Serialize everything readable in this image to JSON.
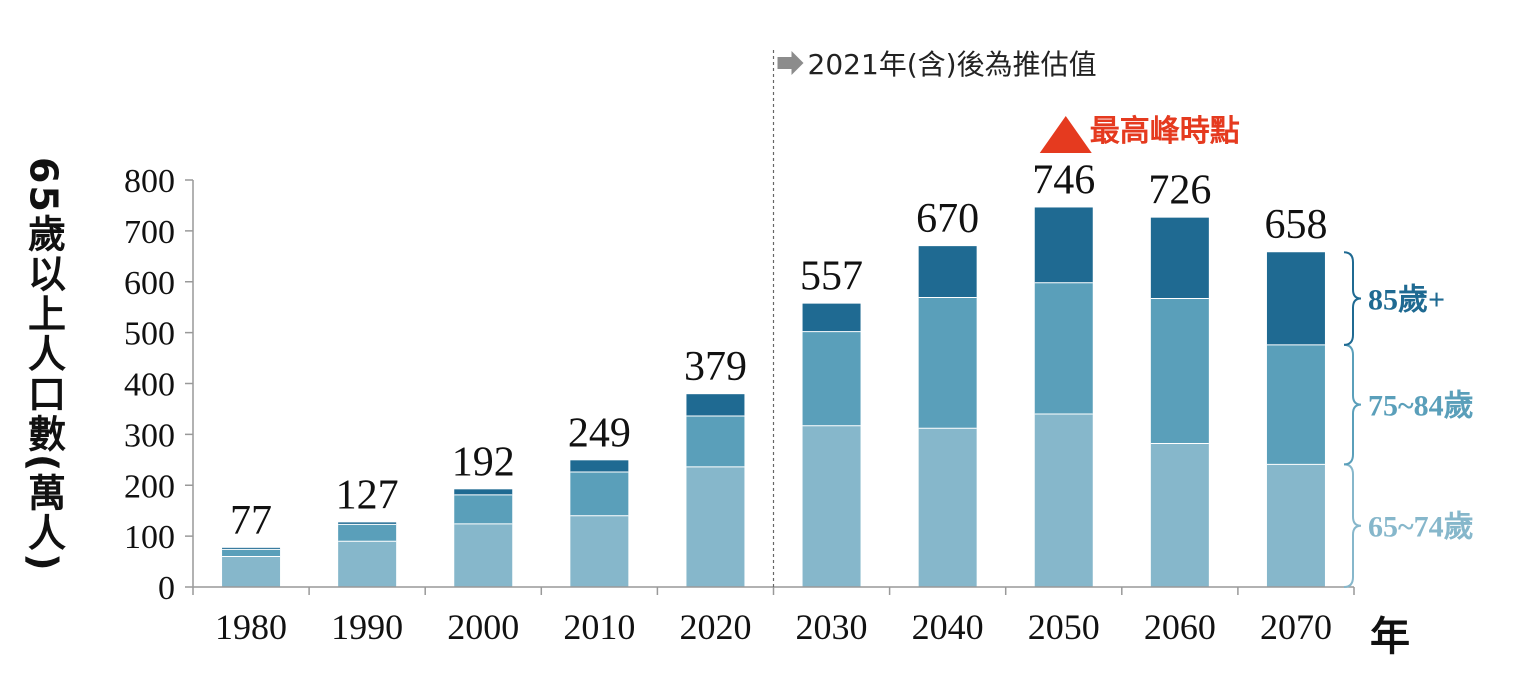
{
  "chart_data": {
    "type": "bar",
    "stacked": true,
    "title": "",
    "ylabel": "65歲以上人口數(萬人)",
    "xlabel": "年",
    "ylim": [
      0,
      800
    ],
    "yticks": [
      0,
      100,
      200,
      300,
      400,
      500,
      600,
      700,
      800
    ],
    "categories": [
      "1980",
      "1990",
      "2000",
      "2010",
      "2020",
      "2030",
      "2040",
      "2050",
      "2060",
      "2070"
    ],
    "totals": [
      77,
      127,
      192,
      249,
      379,
      557,
      670,
      746,
      726,
      658
    ],
    "series": [
      {
        "name": "65~74歲",
        "color": "#86b7cb",
        "values": [
          60,
          90,
          124,
          140,
          236,
          317,
          312,
          340,
          282,
          241
        ]
      },
      {
        "name": "75~84歲",
        "color": "#5a9fba",
        "values": [
          14,
          33,
          57,
          86,
          100,
          185,
          257,
          258,
          285,
          235
        ]
      },
      {
        "name": "85歲+",
        "color": "#1f6a92",
        "values": [
          3,
          4,
          11,
          23,
          43,
          55,
          101,
          148,
          159,
          182
        ]
      }
    ],
    "projection_note": "2021年(含)後為推估值",
    "peak_label": "最高峰時點",
    "peak_category": "2050",
    "peak_color": "#e53a1f"
  }
}
